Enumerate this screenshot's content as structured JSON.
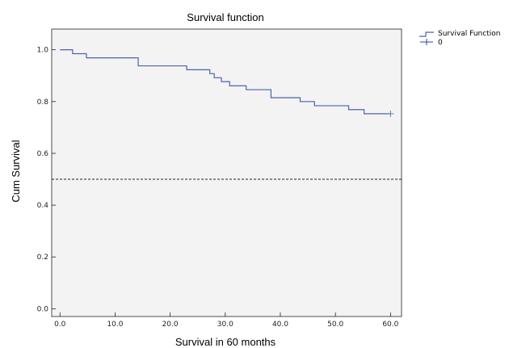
{
  "chart_data": {
    "type": "line",
    "title": "Survival function",
    "xlabel": "Survival in 60 months",
    "ylabel": "Cum Survival",
    "xlim": [
      -1.5,
      62
    ],
    "ylim": [
      -0.03,
      1.08
    ],
    "xticks": [
      0,
      10,
      20,
      30,
      40,
      50,
      60
    ],
    "xtick_labels": [
      "0.0",
      "10.0",
      "20.0",
      "30.0",
      "40.0",
      "50.0",
      "60.0"
    ],
    "yticks": [
      0,
      0.2,
      0.4,
      0.6,
      0.8,
      1.0
    ],
    "ytick_labels": [
      "0.0",
      "0.2",
      "0.4",
      "0.6",
      "0.8",
      "1.0"
    ],
    "reference_line": {
      "y": 0.5,
      "style": "dashed"
    },
    "series": [
      {
        "name": "Survival Function",
        "step": true,
        "color": "#4a64b0",
        "x": [
          0,
          2.3,
          4.8,
          14.2,
          23.0,
          27.2,
          28.0,
          29.3,
          30.8,
          33.8,
          38.3,
          43.6,
          46.2,
          52.4,
          55.2,
          60.0
        ],
        "y": [
          1.0,
          0.985,
          0.969,
          0.938,
          0.923,
          0.908,
          0.892,
          0.877,
          0.861,
          0.846,
          0.815,
          0.8,
          0.784,
          0.769,
          0.753,
          0.753
        ]
      }
    ],
    "censored": {
      "name": "0",
      "x": [
        60.0
      ],
      "y": [
        0.753
      ],
      "marker": "+"
    },
    "plot_background": "#f3f3f3",
    "grid": false,
    "legend_position": "top-right"
  }
}
